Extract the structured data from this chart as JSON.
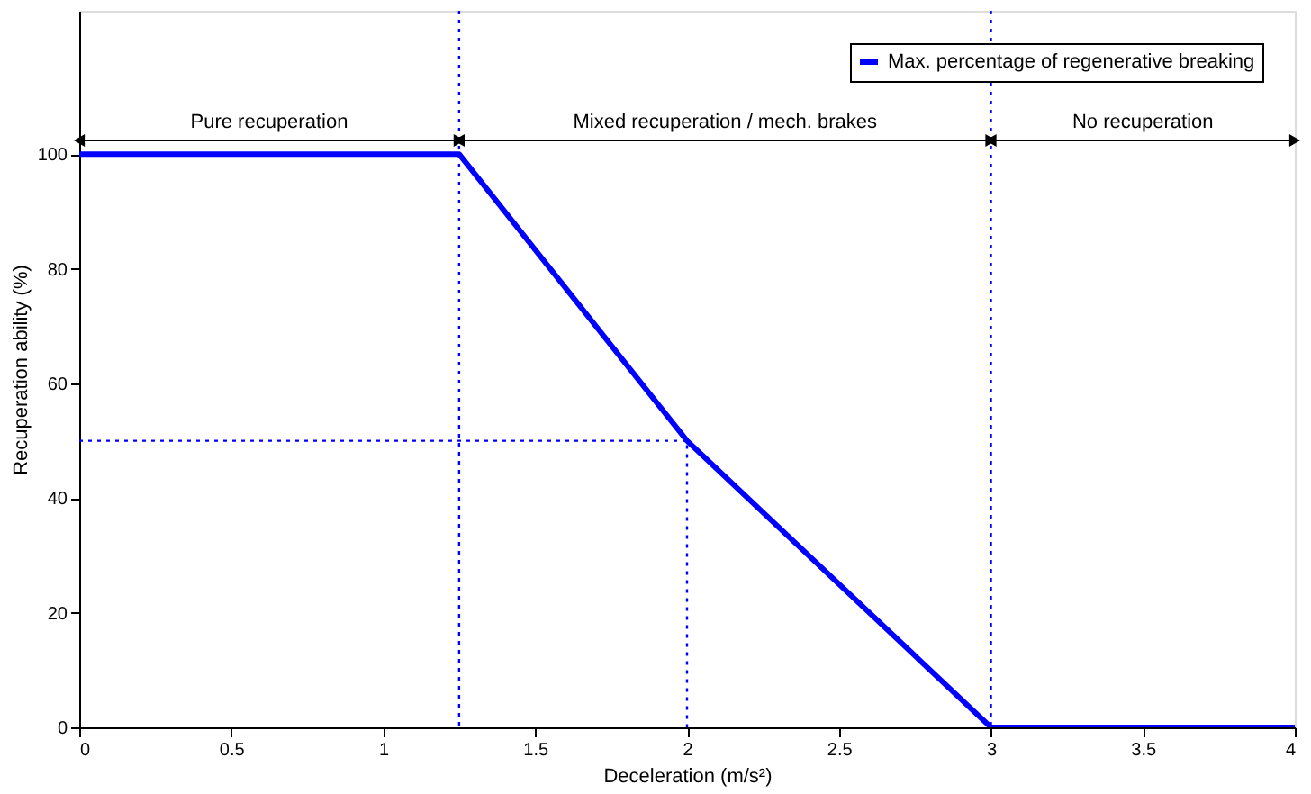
{
  "chart_data": {
    "type": "line",
    "xlabel": "Deceleration (m/s²)",
    "ylabel": "Recuperation ability (%)",
    "xlim": [
      0,
      4
    ],
    "xticks": [
      0,
      0.5,
      1,
      1.5,
      2,
      2.5,
      3,
      3.5,
      4
    ],
    "ylim": [
      0,
      125
    ],
    "yticks": [
      0,
      20,
      40,
      60,
      80,
      100
    ],
    "series": [
      {
        "name": "Max. percentage of regenerative breaking",
        "color": "#0000ff",
        "line_style": "solid",
        "x": [
          0,
          1.25,
          2,
          3,
          4
        ],
        "values": [
          100,
          100,
          50,
          0,
          0
        ]
      },
      {
        "color": "#0000ff",
        "line_style": "dotted",
        "x": [
          0,
          2,
          2
        ],
        "values": [
          50,
          50,
          0
        ]
      }
    ],
    "ref_lines": [
      {
        "axis": "x",
        "value": 1.25,
        "color": "#0000ff",
        "line_style": "dotted"
      },
      {
        "axis": "x",
        "value": 3,
        "color": "#0000ff",
        "line_style": "dotted"
      }
    ],
    "annotations": [
      "Pure recuperation",
      "Mixed recuperation / mech. brakes",
      "No recuperation"
    ],
    "grid": false,
    "legend": "top right"
  }
}
